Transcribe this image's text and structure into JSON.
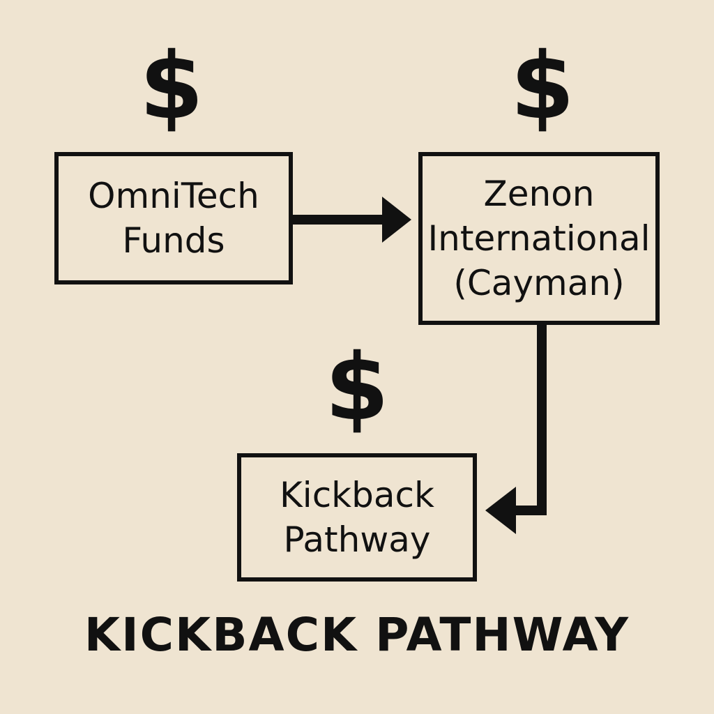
{
  "colors": {
    "background": "#efe4d1",
    "ink": "#111111"
  },
  "symbols": {
    "dollar": "$"
  },
  "nodes": {
    "omnitech": {
      "line1": "OmniTech",
      "line2": "Funds"
    },
    "zenon": {
      "line1": "Zenon",
      "line2": "International",
      "line3": "(Cayman)"
    },
    "kickback": {
      "line1": "Kickback",
      "line2": "Pathway"
    }
  },
  "title": "KICKBACK PATHWAY"
}
